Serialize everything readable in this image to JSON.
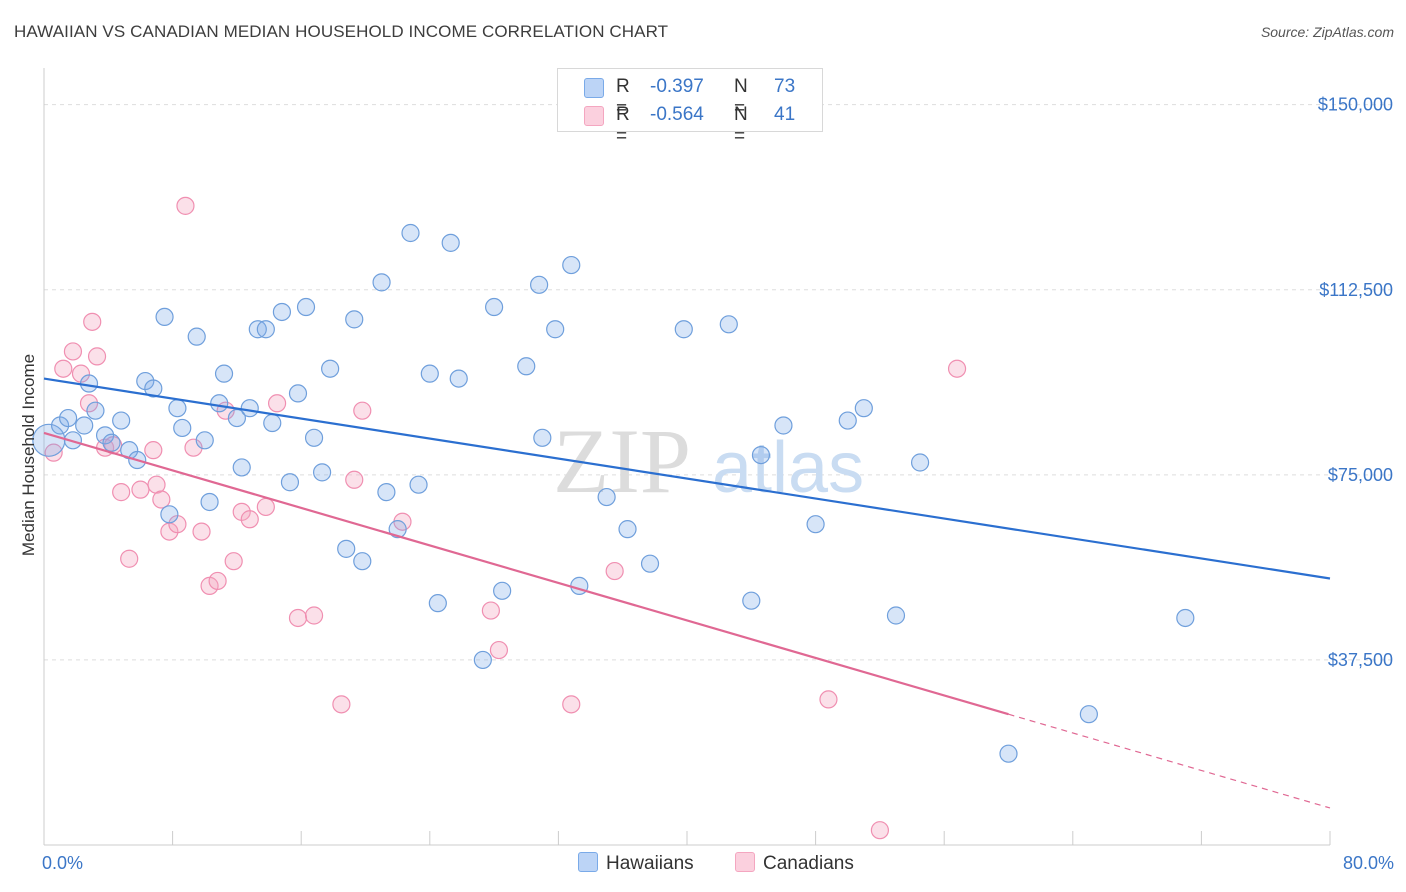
{
  "title": "HAWAIIAN VS CANADIAN MEDIAN HOUSEHOLD INCOME CORRELATION CHART",
  "source": "Source: ZipAtlas.com",
  "watermark": {
    "zip": "ZIP",
    "atlas": "atlas"
  },
  "legend": {
    "rows": [
      {
        "r_label": "R =",
        "r_value": "-0.397",
        "n_label": "N =",
        "n_value": "73"
      },
      {
        "r_label": "R =",
        "r_value": "-0.564",
        "n_label": "N =",
        "n_value": "41"
      }
    ]
  },
  "bottom_legend": {
    "hawaiians": "Hawaiians",
    "canadians": "Canadians"
  },
  "chart_data": {
    "type": "scatter",
    "title": "HAWAIIAN VS CANADIAN MEDIAN HOUSEHOLD INCOME CORRELATION CHART",
    "xlabel": "",
    "ylabel": "Median Household Income",
    "xlim": [
      0,
      80
    ],
    "ylim": [
      0,
      155000
    ],
    "x_tick_labels": [
      "0.0%",
      "80.0%"
    ],
    "y_ticks": [
      37500,
      75000,
      112500,
      150000
    ],
    "y_tick_labels": [
      "$37,500",
      "$75,000",
      "$112,500",
      "$150,000"
    ],
    "grid": "horizontal dashed",
    "legend_position": "top-center",
    "colors": {
      "hawaiians": "#7aaae8",
      "hawaiians_line": "#2b6fd0",
      "canadians": "#f4a6c0",
      "canadians_line": "#e06893"
    },
    "series": [
      {
        "name": "Hawaiians",
        "trend": {
          "x": [
            0,
            80
          ],
          "y": [
            94500,
            54000
          ]
        },
        "points": [
          [
            0.3,
            82000
          ],
          [
            1.0,
            85000
          ],
          [
            1.5,
            86500
          ],
          [
            1.8,
            82000
          ],
          [
            2.5,
            85000
          ],
          [
            2.8,
            93500
          ],
          [
            3.2,
            88000
          ],
          [
            3.8,
            83000
          ],
          [
            4.2,
            81500
          ],
          [
            4.8,
            86000
          ],
          [
            5.3,
            80000
          ],
          [
            5.8,
            78000
          ],
          [
            6.3,
            94000
          ],
          [
            6.8,
            92500
          ],
          [
            7.5,
            107000
          ],
          [
            7.8,
            67000
          ],
          [
            8.3,
            88500
          ],
          [
            8.6,
            84500
          ],
          [
            9.5,
            103000
          ],
          [
            10.0,
            82000
          ],
          [
            10.3,
            69500
          ],
          [
            10.9,
            89500
          ],
          [
            11.2,
            95500
          ],
          [
            12.0,
            86500
          ],
          [
            12.3,
            76500
          ],
          [
            12.8,
            88500
          ],
          [
            13.3,
            104500
          ],
          [
            13.8,
            104500
          ],
          [
            14.2,
            85500
          ],
          [
            14.8,
            108000
          ],
          [
            15.3,
            73500
          ],
          [
            15.8,
            91500
          ],
          [
            16.3,
            109000
          ],
          [
            16.8,
            82500
          ],
          [
            17.3,
            75500
          ],
          [
            17.8,
            96500
          ],
          [
            18.8,
            60000
          ],
          [
            19.3,
            106500
          ],
          [
            19.8,
            57500
          ],
          [
            21.0,
            114000
          ],
          [
            21.3,
            71500
          ],
          [
            22.0,
            64000
          ],
          [
            22.8,
            124000
          ],
          [
            23.3,
            73000
          ],
          [
            24.0,
            95500
          ],
          [
            24.5,
            49000
          ],
          [
            25.3,
            122000
          ],
          [
            25.8,
            94500
          ],
          [
            27.3,
            37500
          ],
          [
            28.0,
            109000
          ],
          [
            28.5,
            51500
          ],
          [
            30.0,
            97000
          ],
          [
            30.8,
            113500
          ],
          [
            31.0,
            82500
          ],
          [
            31.8,
            104500
          ],
          [
            32.8,
            117500
          ],
          [
            33.3,
            52500
          ],
          [
            35.0,
            70500
          ],
          [
            36.3,
            64000
          ],
          [
            37.7,
            57000
          ],
          [
            39.8,
            104500
          ],
          [
            42.6,
            105500
          ],
          [
            44.0,
            49500
          ],
          [
            44.6,
            79000
          ],
          [
            46.0,
            85000
          ],
          [
            48.0,
            65000
          ],
          [
            50.0,
            86000
          ],
          [
            51.0,
            88500
          ],
          [
            53.0,
            46500
          ],
          [
            54.5,
            77500
          ],
          [
            60.0,
            18500
          ],
          [
            65.0,
            26500
          ],
          [
            71.0,
            46000
          ]
        ]
      },
      {
        "name": "Canadians",
        "trend": {
          "x": [
            0,
            60
          ],
          "y": [
            83500,
            26500
          ]
        },
        "trend_dashed": {
          "x": [
            60,
            80
          ],
          "y": [
            26500,
            7500
          ]
        },
        "points": [
          [
            0.6,
            79500
          ],
          [
            1.2,
            96500
          ],
          [
            1.8,
            100000
          ],
          [
            2.3,
            95500
          ],
          [
            2.8,
            89500
          ],
          [
            3.0,
            106000
          ],
          [
            3.3,
            99000
          ],
          [
            3.8,
            80500
          ],
          [
            4.3,
            81000
          ],
          [
            4.8,
            71500
          ],
          [
            5.3,
            58000
          ],
          [
            6.0,
            72000
          ],
          [
            6.8,
            80000
          ],
          [
            7.0,
            73000
          ],
          [
            7.3,
            70000
          ],
          [
            7.8,
            63500
          ],
          [
            8.3,
            65000
          ],
          [
            8.8,
            129500
          ],
          [
            9.3,
            80500
          ],
          [
            9.8,
            63500
          ],
          [
            10.3,
            52500
          ],
          [
            10.8,
            53500
          ],
          [
            11.3,
            88000
          ],
          [
            11.8,
            57500
          ],
          [
            12.3,
            67500
          ],
          [
            12.8,
            66000
          ],
          [
            13.8,
            68500
          ],
          [
            14.5,
            89500
          ],
          [
            15.8,
            46000
          ],
          [
            16.8,
            46500
          ],
          [
            18.5,
            28500
          ],
          [
            19.3,
            74000
          ],
          [
            19.8,
            88000
          ],
          [
            22.3,
            65500
          ],
          [
            27.8,
            47500
          ],
          [
            28.3,
            39500
          ],
          [
            32.8,
            28500
          ],
          [
            35.5,
            55500
          ],
          [
            48.8,
            29500
          ],
          [
            52.0,
            3000
          ],
          [
            56.8,
            96500
          ]
        ]
      }
    ]
  }
}
